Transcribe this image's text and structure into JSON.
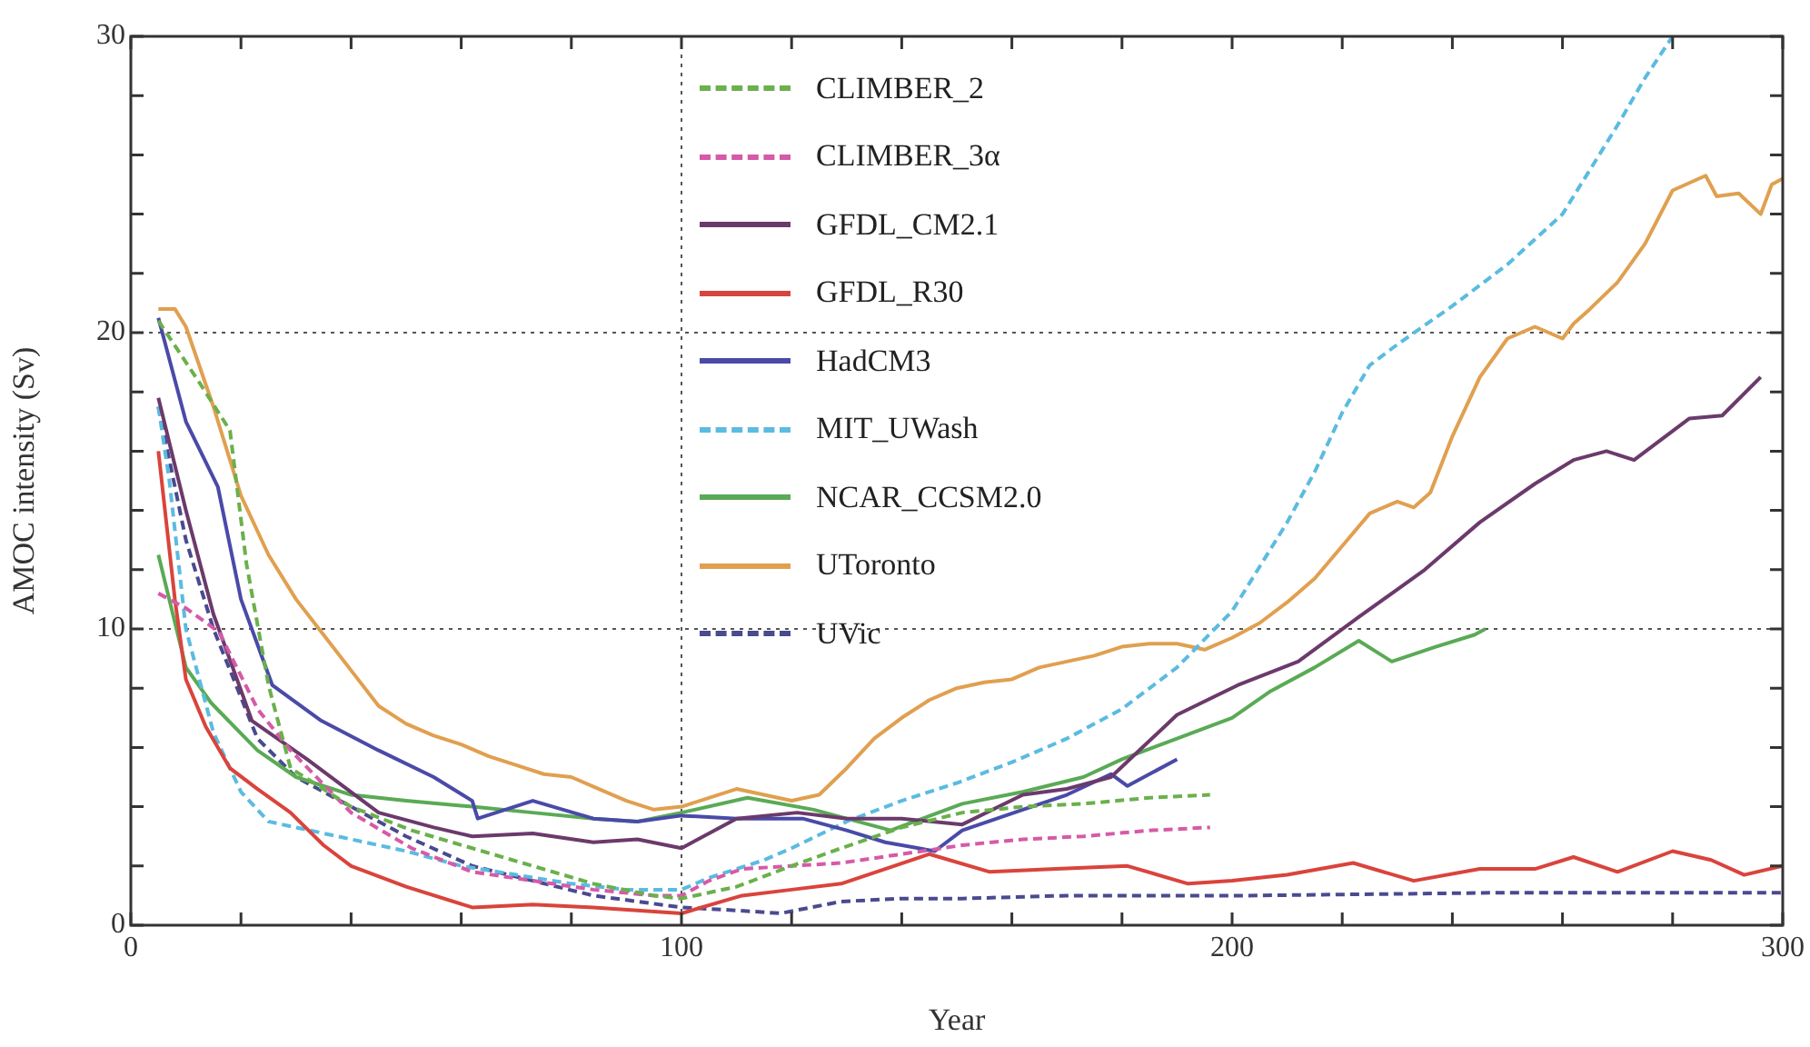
{
  "chart_data": {
    "type": "line",
    "xlabel": "Year",
    "ylabel": "AMOC intensity (Sv)",
    "xlim": [
      0,
      300
    ],
    "ylim": [
      0,
      30
    ],
    "xticks": [
      0,
      {
        "value": 20,
        "label": null
      },
      {
        "value": 40,
        "label": null
      },
      {
        "value": 60,
        "label": null
      },
      {
        "value": 80,
        "label": null
      },
      100,
      {
        "value": 120,
        "label": null
      },
      {
        "value": 140,
        "label": null
      },
      {
        "value": 160,
        "label": null
      },
      {
        "value": 180,
        "label": null
      },
      200,
      {
        "value": 220,
        "label": null
      },
      {
        "value": 240,
        "label": null
      },
      {
        "value": 260,
        "label": null
      },
      {
        "value": 280,
        "label": null
      },
      300
    ],
    "yticks": [
      0,
      {
        "value": 2,
        "label": null
      },
      {
        "value": 4,
        "label": null
      },
      {
        "value": 6,
        "label": null
      },
      {
        "value": 8,
        "label": null
      },
      10,
      {
        "value": 12,
        "label": null
      },
      {
        "value": 14,
        "label": null
      },
      {
        "value": 16,
        "label": null
      },
      {
        "value": 18,
        "label": null
      },
      20,
      {
        "value": 22,
        "label": null
      },
      {
        "value": 24,
        "label": null
      },
      {
        "value": 26,
        "label": null
      },
      {
        "value": 28,
        "label": null
      },
      30
    ],
    "grid": false,
    "legend": "top",
    "marker": "none",
    "ref_lines": [
      {
        "axis": "y",
        "value": 10,
        "color": "#555555",
        "line_style": "dotted"
      },
      {
        "axis": "y",
        "value": 20,
        "color": "#555555",
        "line_style": "dotted"
      },
      {
        "axis": "x",
        "value": 100,
        "color": "#555555",
        "line_style": "dotted"
      }
    ],
    "series": [
      {
        "name": "CLIMBER_2",
        "color": "#6ab04c",
        "line_style": "dashed",
        "x": [
          5,
          12.5,
          18,
          21,
          25,
          29,
          40,
          51,
          62,
          73,
          84,
          95,
          100,
          110,
          120,
          129,
          140,
          151,
          162,
          173,
          185,
          196
        ],
        "values": [
          20.4,
          18.3,
          16.7,
          12.2,
          8.1,
          5.3,
          4.0,
          3.2,
          2.6,
          2.0,
          1.4,
          1.0,
          0.9,
          1.3,
          2.0,
          2.6,
          3.3,
          3.8,
          4.0,
          4.1,
          4.3,
          4.4
        ]
      },
      {
        "name": "CLIMBER_3α",
        "color": "#d65aa8",
        "line_style": "dashed",
        "x": [
          5,
          10,
          16,
          23,
          29,
          40,
          51,
          62,
          73,
          84,
          95,
          100,
          105,
          111,
          120,
          129,
          140,
          151,
          162,
          173,
          185,
          196
        ],
        "values": [
          11.2,
          10.7,
          9.9,
          7.3,
          5.9,
          3.8,
          2.6,
          1.8,
          1.5,
          1.2,
          1.0,
          1.0,
          1.5,
          1.9,
          2.0,
          2.1,
          2.4,
          2.7,
          2.9,
          3.0,
          3.2,
          3.3
        ]
      },
      {
        "name": "GFDL_CM2.1",
        "color": "#6b3a6b",
        "line_style": "solid",
        "x": [
          5,
          10,
          15,
          22,
          32,
          45,
          55,
          62,
          73,
          84,
          92,
          100,
          110,
          121,
          130,
          140,
          151,
          162,
          170,
          178,
          190,
          201,
          212,
          223,
          235,
          245,
          255,
          262,
          268,
          273,
          283,
          289,
          296
        ],
        "values": [
          17.8,
          14.0,
          10.5,
          6.9,
          5.6,
          3.8,
          3.3,
          3.0,
          3.1,
          2.8,
          2.9,
          2.6,
          3.6,
          3.8,
          3.6,
          3.6,
          3.4,
          4.4,
          4.6,
          5.0,
          7.1,
          8.1,
          8.9,
          10.4,
          12.0,
          13.6,
          14.9,
          15.7,
          16.0,
          15.7,
          17.1,
          17.2,
          18.5
        ]
      },
      {
        "name": "GFDL_R30",
        "color": "#d9443c",
        "line_style": "solid",
        "x": [
          5,
          8,
          10,
          13.6,
          18,
          23,
          29,
          35,
          40,
          50,
          62,
          73,
          84,
          92,
          100,
          111,
          120,
          129,
          137,
          145,
          156,
          168,
          181,
          192,
          200,
          210,
          222,
          233,
          245,
          255,
          262,
          270,
          280,
          287,
          293,
          300
        ],
        "values": [
          16.0,
          11.0,
          8.3,
          6.7,
          5.3,
          4.6,
          3.8,
          2.7,
          2.0,
          1.3,
          0.6,
          0.7,
          0.6,
          0.5,
          0.4,
          1.0,
          1.2,
          1.4,
          1.9,
          2.4,
          1.8,
          1.9,
          2.0,
          1.4,
          1.5,
          1.7,
          2.1,
          1.5,
          1.9,
          1.9,
          2.3,
          1.8,
          2.5,
          2.2,
          1.7,
          2.0
        ]
      },
      {
        "name": "HadCM3",
        "color": "#4a4aa8",
        "line_style": "solid",
        "x": [
          5,
          10,
          15.8,
          20,
          25.7,
          34.6,
          45,
          55,
          62,
          63,
          73,
          84,
          92,
          100,
          110,
          122,
          130,
          137,
          146,
          151,
          162,
          170,
          178,
          181,
          190
        ],
        "values": [
          20.5,
          17.0,
          14.8,
          11.0,
          8.1,
          6.9,
          5.9,
          5.0,
          4.2,
          3.6,
          4.2,
          3.6,
          3.5,
          3.7,
          3.6,
          3.6,
          3.2,
          2.8,
          2.5,
          3.2,
          3.9,
          4.4,
          5.1,
          4.7,
          5.6
        ]
      },
      {
        "name": "MIT_UWash",
        "color": "#5bbbe0",
        "line_style": "dashed",
        "x": [
          5,
          7,
          10,
          15,
          20,
          25,
          30,
          40,
          50,
          60,
          70,
          80,
          90,
          100,
          105,
          110,
          115,
          120,
          130,
          140,
          150,
          160,
          170,
          180,
          190,
          200,
          210,
          215,
          220,
          225,
          230,
          240,
          250,
          260,
          265,
          270,
          275,
          280
        ],
        "values": [
          17.5,
          15,
          10,
          6.5,
          4.5,
          3.5,
          3.3,
          2.9,
          2.5,
          2.0,
          1.7,
          1.4,
          1.2,
          1.2,
          1.6,
          1.9,
          2.2,
          2.6,
          3.5,
          4.2,
          4.8,
          5.5,
          6.3,
          7.3,
          8.7,
          10.6,
          13.6,
          15.3,
          17.3,
          18.9,
          19.6,
          20.9,
          22.3,
          24.0,
          25.5,
          27.0,
          28.6,
          30
        ]
      },
      {
        "name": "NCAR_CCSM2.0",
        "color": "#5aaa55",
        "line_style": "solid",
        "x": [
          5,
          10,
          14.6,
          23,
          30,
          40,
          50,
          62,
          73,
          84,
          92,
          100,
          112,
          124,
          138,
          151,
          162,
          173,
          180,
          190,
          200,
          207,
          215,
          223,
          229,
          237,
          244,
          246
        ],
        "values": [
          12.5,
          8.7,
          7.5,
          5.9,
          5.0,
          4.4,
          4.2,
          4.0,
          3.8,
          3.6,
          3.5,
          3.8,
          4.3,
          3.9,
          3.2,
          4.1,
          4.5,
          5.0,
          5.6,
          6.3,
          7.0,
          7.9,
          8.7,
          9.6,
          8.9,
          9.4,
          9.8,
          10.0
        ]
      },
      {
        "name": "UToronto",
        "color": "#e0a050",
        "line_style": "solid",
        "x": [
          5,
          8,
          10,
          15,
          20,
          25,
          30,
          35,
          40,
          45,
          50,
          55,
          60,
          65,
          70,
          75,
          80,
          85,
          90,
          95,
          100,
          105,
          110,
          115,
          120,
          125,
          130,
          135,
          140,
          145,
          150,
          155,
          160,
          165,
          170,
          175,
          180,
          185,
          190,
          195,
          200,
          205,
          210,
          215,
          220,
          225,
          230,
          233,
          236,
          240,
          245,
          250,
          255,
          260,
          262,
          265,
          270,
          275,
          280,
          286,
          288,
          292,
          296,
          298,
          300
        ],
        "values": [
          20.8,
          20.8,
          20.2,
          17.5,
          14.5,
          12.5,
          11.0,
          9.8,
          8.6,
          7.4,
          6.8,
          6.4,
          6.1,
          5.7,
          5.4,
          5.1,
          5.0,
          4.6,
          4.2,
          3.9,
          4.0,
          4.3,
          4.6,
          4.4,
          4.2,
          4.4,
          5.3,
          6.3,
          7.0,
          7.6,
          8.0,
          8.2,
          8.3,
          8.7,
          8.9,
          9.1,
          9.4,
          9.5,
          9.5,
          9.3,
          9.7,
          10.2,
          10.9,
          11.7,
          12.8,
          13.9,
          14.3,
          14.1,
          14.6,
          16.5,
          18.5,
          19.8,
          20.2,
          19.8,
          20.3,
          20.8,
          21.7,
          23.0,
          24.8,
          25.3,
          24.6,
          24.7,
          24.0,
          25.0,
          25.2
        ]
      },
      {
        "name": "UVic",
        "color": "#4a4a90",
        "line_style": "dashed",
        "x": [
          5,
          10,
          15,
          23,
          30,
          40,
          50,
          62,
          73,
          84,
          92,
          100,
          110,
          118,
          129,
          140,
          151,
          170,
          203,
          250,
          300
        ],
        "values": [
          17.5,
          13.0,
          10.0,
          6.3,
          5.0,
          4.0,
          3.0,
          2.0,
          1.5,
          1.0,
          0.8,
          0.6,
          0.5,
          0.4,
          0.8,
          0.9,
          0.9,
          1.0,
          1.0,
          1.1,
          1.1
        ]
      }
    ]
  }
}
